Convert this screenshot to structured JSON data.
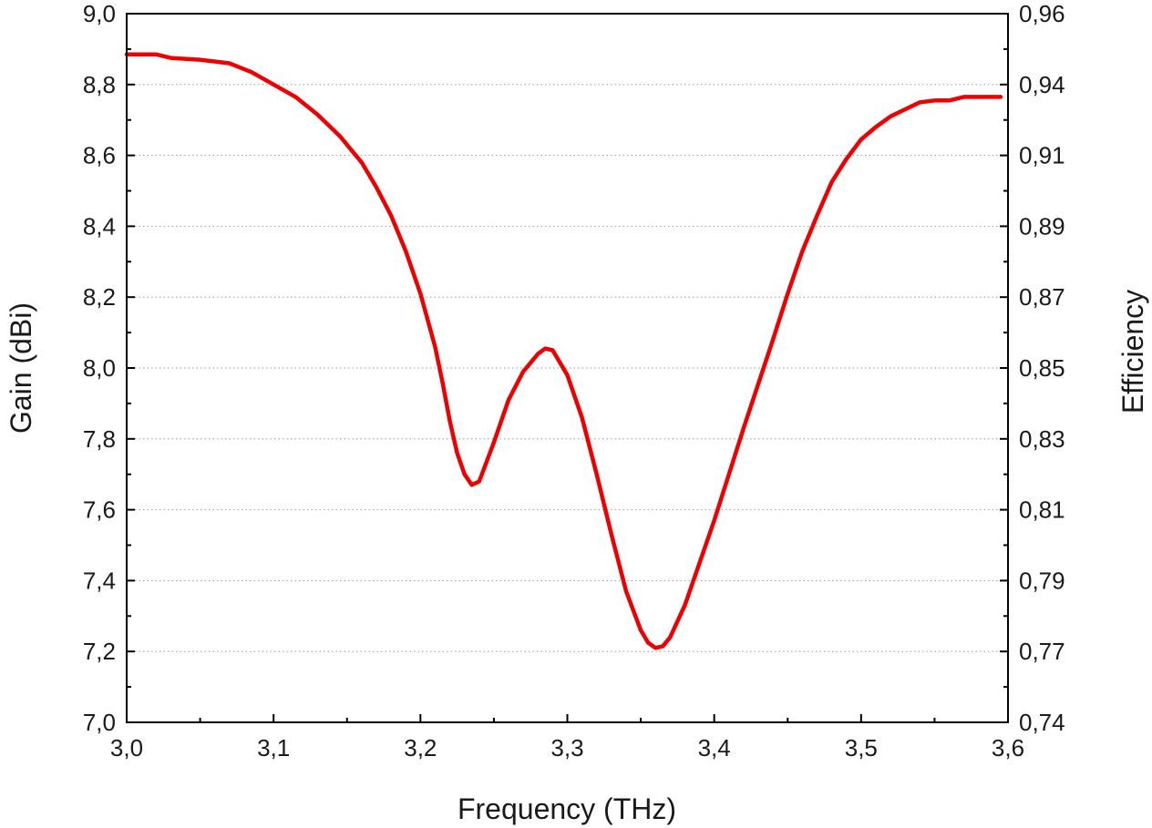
{
  "chart_data": {
    "type": "line",
    "title": "",
    "xlabel": "Frequency (THz)",
    "ylabel": "Gain (dBi)",
    "y2label": "Efficiency",
    "xlim": [
      3.0,
      3.6
    ],
    "ylim": [
      7.0,
      9.0
    ],
    "xticks": [
      "3,0",
      "3,1",
      "3,2",
      "3,3",
      "3,4",
      "3,5",
      "3,6"
    ],
    "yticks": [
      "7,0",
      "7,2",
      "7,4",
      "7,6",
      "7,8",
      "8,0",
      "8,2",
      "8,4",
      "8,6",
      "8,8",
      "9,0"
    ],
    "y2ticks": [
      "0,74",
      "0,77",
      "0,79",
      "0,81",
      "0,83",
      "0,85",
      "0,87",
      "0,89",
      "0,91",
      "0,94",
      "0,96"
    ],
    "grid": "horizontal dotted",
    "series": [
      {
        "color": "#ee0000",
        "x": [
          3.0,
          3.01,
          3.02,
          3.03,
          3.05,
          3.07,
          3.085,
          3.1,
          3.115,
          3.13,
          3.145,
          3.16,
          3.17,
          3.18,
          3.19,
          3.2,
          3.21,
          3.215,
          3.22,
          3.225,
          3.23,
          3.235,
          3.24,
          3.25,
          3.26,
          3.27,
          3.28,
          3.285,
          3.29,
          3.3,
          3.31,
          3.32,
          3.33,
          3.34,
          3.35,
          3.355,
          3.36,
          3.365,
          3.37,
          3.38,
          3.39,
          3.4,
          3.41,
          3.42,
          3.43,
          3.44,
          3.45,
          3.46,
          3.47,
          3.48,
          3.49,
          3.5,
          3.51,
          3.52,
          3.53,
          3.54,
          3.55,
          3.56,
          3.57,
          3.58,
          3.595
        ],
        "y": [
          8.885,
          8.885,
          8.885,
          8.875,
          8.87,
          8.86,
          8.835,
          8.8,
          8.765,
          8.715,
          8.655,
          8.58,
          8.51,
          8.43,
          8.33,
          8.21,
          8.06,
          7.96,
          7.85,
          7.76,
          7.7,
          7.67,
          7.68,
          7.79,
          7.91,
          7.99,
          8.04,
          8.055,
          8.05,
          7.98,
          7.86,
          7.7,
          7.53,
          7.37,
          7.26,
          7.225,
          7.21,
          7.215,
          7.24,
          7.33,
          7.45,
          7.57,
          7.7,
          7.83,
          7.955,
          8.08,
          8.21,
          8.33,
          8.43,
          8.525,
          8.59,
          8.645,
          8.68,
          8.71,
          8.73,
          8.75,
          8.755,
          8.755,
          8.765,
          8.765,
          8.765
        ]
      }
    ]
  }
}
